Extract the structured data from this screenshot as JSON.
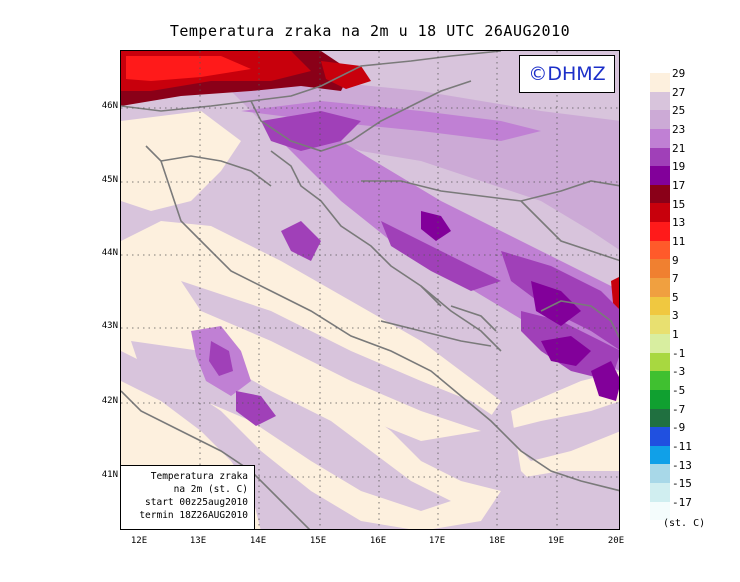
{
  "title": "Temperatura zraka na 2m u 18 UTC 26AUG2010",
  "logo": "©DHMZ",
  "info": {
    "line1": "Temperatura zraka",
    "line2": "na 2m (st. C)",
    "line3": "start 00z25aug2010",
    "line4": "termin 18Z26AUG2010"
  },
  "latitude_labels": [
    "46N",
    "45N",
    "44N",
    "43N",
    "42N",
    "41N"
  ],
  "longitude_labels": [
    "12E",
    "13E",
    "14E",
    "15E",
    "16E",
    "17E",
    "18E",
    "19E",
    "20E"
  ],
  "legend": {
    "labels": [
      "29",
      "27",
      "25",
      "23",
      "21",
      "19",
      "17",
      "15",
      "13",
      "11",
      "9",
      "7",
      "5",
      "3",
      "1",
      "-1",
      "-3",
      "-5",
      "-7",
      "-9",
      "-11",
      "-13",
      "-15",
      "-17"
    ],
    "colors": [
      "#fdf0de",
      "#d8c4dc",
      "#ccaad6",
      "#c080d4",
      "#a040b8",
      "#82009a",
      "#8a0018",
      "#c8000c",
      "#ff1a1a",
      "#ff5a2a",
      "#f08030",
      "#f0a040",
      "#f0c840",
      "#e8e070",
      "#d8eea0",
      "#a8d840",
      "#40c030",
      "#10a030",
      "#207040",
      "#2050e0",
      "#10a0e8",
      "#a8d8e8",
      "#d0eef0",
      "#f4fcfc"
    ],
    "unit": "(st. C)"
  }
}
